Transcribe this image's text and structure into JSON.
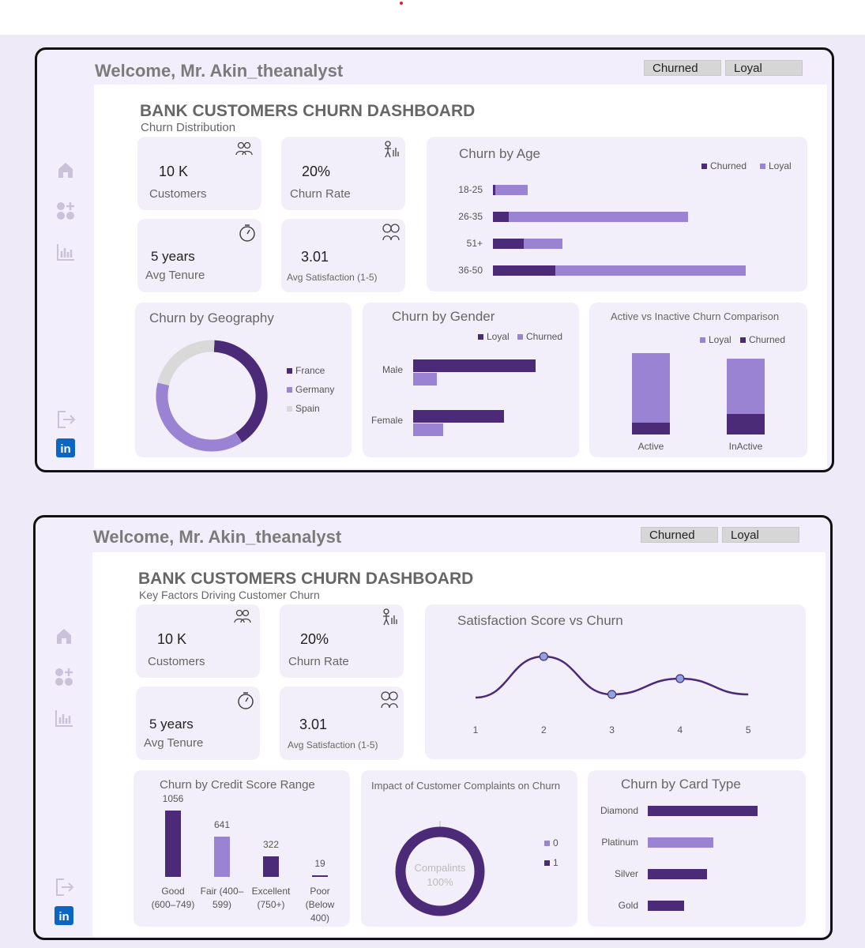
{
  "colors": {
    "dark": "#4b2a78",
    "light": "#9b83d4",
    "grey": "#d9d9d9",
    "panel": "#f3effa"
  },
  "common": {
    "welcome": "Welcome, Mr. Akin_theanalyst",
    "filters": [
      "Churned",
      "Loyal"
    ],
    "dashboard_title": "BANK CUSTOMERS CHURN DASHBOARD",
    "kpis": {
      "customers_value": "10 K",
      "customers_label": "Customers",
      "churn_rate_value": "20%",
      "churn_rate_label": "Churn Rate",
      "tenure_value": "5 years",
      "tenure_label": "Avg Tenure",
      "satisfaction_value": "3.01",
      "satisfaction_label": "Avg Satisfaction (1-5)"
    },
    "sidebar_icons": [
      "home-icon",
      "apps-icon",
      "bar-chart-icon",
      "logout-icon",
      "linkedin-icon"
    ],
    "linkedin_text": "in"
  },
  "dashboard1": {
    "subtitle": "Churn Distribution",
    "age_title": "Churn by Age",
    "geo_title": "Churn by Geography",
    "gender_title": "Churn by Gender",
    "active_title": "Active vs Inactive Churn Comparison",
    "legend_churned": "Churned",
    "legend_loyal": "Loyal",
    "geo_legend": [
      "France",
      "Germany",
      "Spain"
    ]
  },
  "dashboard2": {
    "subtitle": "Key Factors Driving Customer Churn",
    "sat_title": "Satisfaction Score vs Churn",
    "credit_title": "Churn by Credit Score Range",
    "complaints_title": "Impact of Customer Complaints on Churn",
    "card_title": "Churn by Card Type",
    "donut_label": "Compalints",
    "donut_pct": "100%",
    "complaint_legend": [
      "0",
      "1"
    ]
  },
  "chart_data": [
    {
      "type": "bar",
      "orientation": "horizontal",
      "stacked": true,
      "title": "Churn by Age",
      "categories": [
        "18-25",
        "26-35",
        "51+",
        "36-50"
      ],
      "series": [
        {
          "name": "Churned",
          "values": [
            2,
            14,
            27,
            54
          ]
        },
        {
          "name": "Loyal",
          "values": [
            28,
            155,
            33,
            165
          ]
        }
      ],
      "legend": "top-right"
    },
    {
      "type": "pie",
      "donut": true,
      "title": "Churn by Geography",
      "labels": [
        "France",
        "Germany",
        "Spain"
      ],
      "values": [
        40,
        38,
        22
      ]
    },
    {
      "type": "bar",
      "orientation": "horizontal",
      "title": "Churn by Gender",
      "categories": [
        "Male",
        "Female"
      ],
      "series": [
        {
          "name": "Loyal",
          "values": [
            155,
            115
          ]
        },
        {
          "name": "Churned",
          "values": [
            30,
            38
          ]
        }
      ]
    },
    {
      "type": "bar",
      "stacked": true,
      "title": "Active vs Inactive Churn Comparison",
      "categories": [
        "Active",
        "InActive"
      ],
      "series": [
        {
          "name": "Loyal",
          "values": [
            88,
            70
          ]
        },
        {
          "name": "Churned",
          "values": [
            15,
            26
          ]
        }
      ]
    },
    {
      "type": "line",
      "title": "Satisfaction Score vs Churn",
      "x": [
        1,
        2,
        3,
        4,
        5
      ],
      "values": [
        18,
        31,
        19,
        24,
        19
      ],
      "marked_points": [
        2,
        3,
        4
      ]
    },
    {
      "type": "bar",
      "title": "Churn by Credit Score Range",
      "categories": [
        "Good (600–749)",
        "Fair (400–599)",
        "Excellent (750+)",
        "Poor (Below 400)"
      ],
      "category_lines": [
        [
          "Good",
          "(600–749)"
        ],
        [
          "Fair (400–",
          "599)"
        ],
        [
          "Excellent",
          "(750+)"
        ],
        [
          "Poor",
          "(Below",
          "400)"
        ]
      ],
      "values": [
        1056,
        641,
        322,
        19
      ],
      "value_labels": [
        "1056",
        "641",
        "322",
        "19"
      ],
      "highlight": [
        false,
        true,
        false,
        false
      ],
      "ylim": [
        0,
        1100
      ]
    },
    {
      "type": "pie",
      "donut": true,
      "title": "Impact of Customer Complaints on Churn",
      "labels": [
        "0",
        "1"
      ],
      "values": [
        0,
        100
      ]
    },
    {
      "type": "bar",
      "orientation": "horizontal",
      "title": "Churn by Card Type",
      "categories": [
        "Diamond",
        "Platinum",
        "Silver",
        "Gold"
      ],
      "values": [
        139,
        83,
        75,
        46
      ],
      "highlight": [
        false,
        true,
        false,
        false
      ],
      "xlim": [
        0,
        150
      ]
    }
  ]
}
